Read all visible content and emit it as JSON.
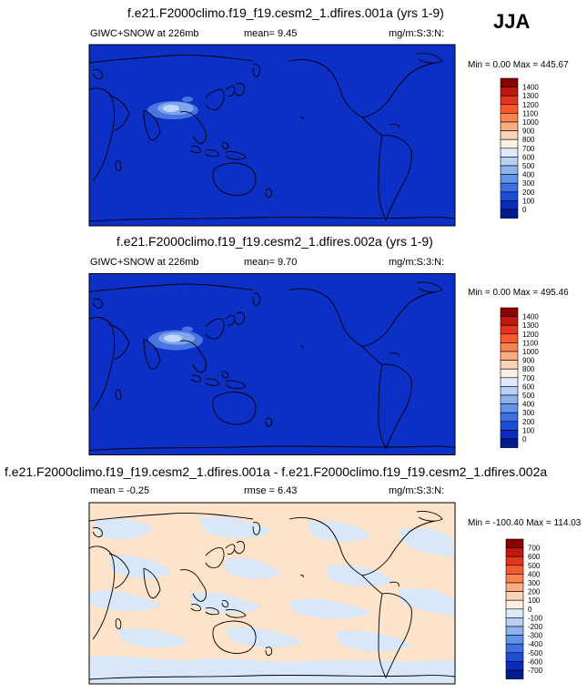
{
  "season": "JJA",
  "colors": {
    "ocean_blue": "#0c2fc6",
    "tibet_light": "#7fa5ee",
    "tibet_lighter": "#c0d7f5",
    "diff_pos": "#fde3c9",
    "diff_neg": "#d8e8f8",
    "coast": "#000000"
  },
  "panels": [
    {
      "title": "f.e21.F2000climo.f19_f19.cesm2_1.dfires.001a (yrs 1-9)",
      "left": "GIWC+SNOW at 226mb",
      "mean": "mean=   9.45",
      "right": "mg/m:S:3:N:",
      "minmax": "Min =   0.00 Max = 445.67",
      "levels": [
        "1400",
        "1300",
        "1200",
        "1100",
        "1000",
        "900",
        "800",
        "700",
        "600",
        "500",
        "400",
        "300",
        "200",
        "100",
        "0"
      ],
      "colorbar": [
        "#8b0000",
        "#c0180d",
        "#e3351d",
        "#f65a2e",
        "#fb8550",
        "#fcae82",
        "#fcd3b4",
        "#fdf0e2",
        "#dde9f8",
        "#b8d0f3",
        "#8fb2ee",
        "#6593e8",
        "#3d6fe2",
        "#1e4ed6",
        "#0a2cbd",
        "#001a8f"
      ]
    },
    {
      "title": "f.e21.F2000climo.f19_f19.cesm2_1.dfires.002a (yrs 1-9)",
      "left": "GIWC+SNOW at 226mb",
      "mean": "mean=   9.70",
      "right": "mg/m:S:3:N:",
      "minmax": "Min =   0.00 Max = 495.46",
      "levels": [
        "1400",
        "1300",
        "1200",
        "1100",
        "1000",
        "900",
        "800",
        "700",
        "600",
        "500",
        "400",
        "300",
        "200",
        "100",
        "0"
      ],
      "colorbar": [
        "#8b0000",
        "#c0180d",
        "#e3351d",
        "#f65a2e",
        "#fb8550",
        "#fcae82",
        "#fcd3b4",
        "#fdf0e2",
        "#dde9f8",
        "#b8d0f3",
        "#8fb2ee",
        "#6593e8",
        "#3d6fe2",
        "#1e4ed6",
        "#0a2cbd",
        "#001a8f"
      ]
    },
    {
      "title": "f.e21.F2000climo.f19_f19.cesm2_1.dfires.001a - f.e21.F2000climo.f19_f19.cesm2_1.dfires.002a",
      "left": "mean =  -0.25",
      "mean": "rmse =   6.43",
      "right": "mg/m:S:3:N:",
      "minmax": "Min = -100.40 Max = 114.03",
      "levels": [
        "700",
        "600",
        "500",
        "400",
        "300",
        "200",
        "100",
        "0",
        "-100",
        "-200",
        "-300",
        "-400",
        "-500",
        "-600",
        "-700"
      ],
      "colorbar": [
        "#8b0000",
        "#c0180d",
        "#e3351d",
        "#f65a2e",
        "#fb8550",
        "#fcae82",
        "#fcd3b4",
        "#fdf0e2",
        "#dde9f8",
        "#b8d0f3",
        "#8fb2ee",
        "#6593e8",
        "#3d6fe2",
        "#1e4ed6",
        "#0a2cbd",
        "#001a8f"
      ]
    }
  ],
  "chart_data": [
    {
      "type": "heatmap",
      "title": "f.e21.F2000climo.f19_f19.cesm2_1.dfires.001a (yrs 1-9)",
      "variable": "GIWC+SNOW at 226mb",
      "units": "mg/m:S:3:N:",
      "mean": 9.45,
      "min": 0.0,
      "max": 445.67,
      "levels": [
        0,
        100,
        200,
        300,
        400,
        500,
        600,
        700,
        800,
        900,
        1000,
        1100,
        1200,
        1300,
        1400
      ],
      "feature": "maximum over Tibetan Plateau / South Asia, near-zero elsewhere"
    },
    {
      "type": "heatmap",
      "title": "f.e21.F2000climo.f19_f19.cesm2_1.dfires.002a (yrs 1-9)",
      "variable": "GIWC+SNOW at 226mb",
      "units": "mg/m:S:3:N:",
      "mean": 9.7,
      "min": 0.0,
      "max": 495.46,
      "levels": [
        0,
        100,
        200,
        300,
        400,
        500,
        600,
        700,
        800,
        900,
        1000,
        1100,
        1200,
        1300,
        1400
      ],
      "feature": "maximum over Tibetan Plateau / South Asia, near-zero elsewhere"
    },
    {
      "type": "heatmap",
      "title": "f.e21.F2000climo.f19_f19.cesm2_1.dfires.001a - f.e21.F2000climo.f19_f19.cesm2_1.dfires.002a",
      "units": "mg/m:S:3:N:",
      "mean": -0.25,
      "rmse": 6.43,
      "min": -100.4,
      "max": 114.03,
      "levels": [
        -700,
        -600,
        -500,
        -400,
        -300,
        -200,
        -100,
        0,
        100,
        200,
        300,
        400,
        500,
        600,
        700
      ],
      "feature": "weak differences between -100 and 100 globally"
    }
  ]
}
